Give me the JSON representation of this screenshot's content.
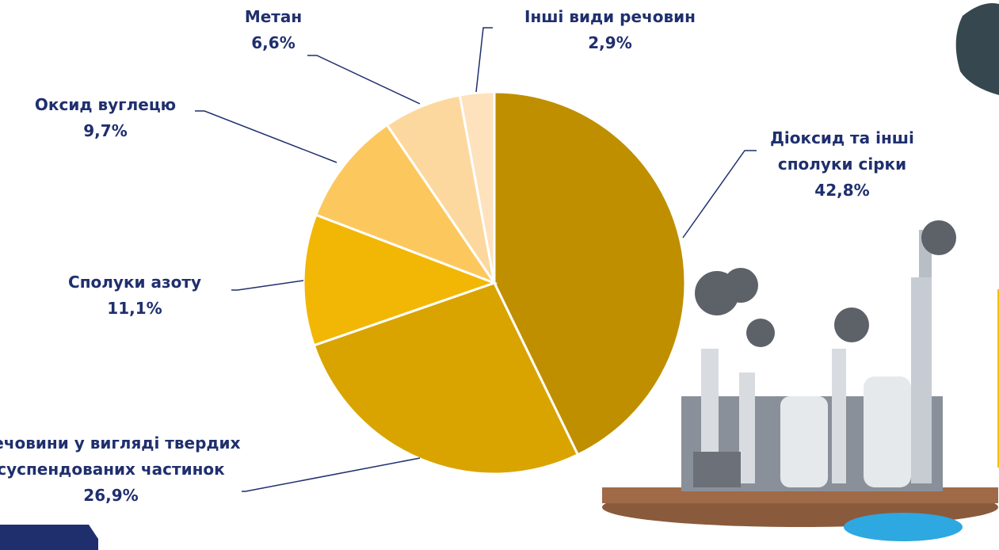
{
  "chart_data": {
    "type": "pie",
    "categories": [
      "Діоксид та інші сполуки сірки",
      "Речовини у вигляді твердих суспендованих частинок",
      "Сполуки азоту",
      "Оксид вуглецю",
      "Метан",
      "Інші види речовин"
    ],
    "values": [
      42.8,
      26.9,
      11.1,
      9.7,
      6.6,
      2.9
    ],
    "value_labels": [
      "42,8%",
      "26,9%",
      "11,1%",
      "9,7%",
      "6,6%",
      "2,9%"
    ],
    "colors": [
      "#bf8f00",
      "#d9a400",
      "#f2b705",
      "#fcc85e",
      "#fdd89e",
      "#fde2bd"
    ]
  }
}
